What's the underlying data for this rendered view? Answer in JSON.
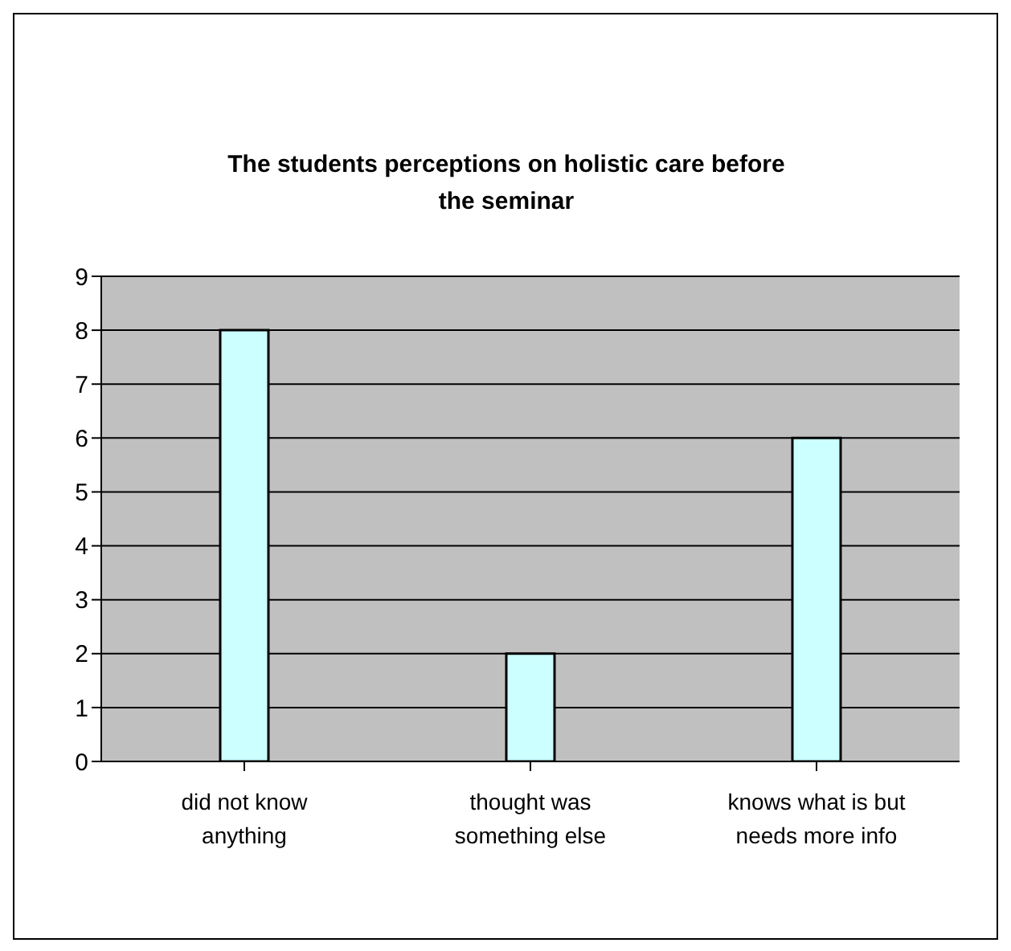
{
  "chart_data": {
    "type": "bar",
    "title": "The students perceptions on holistic care before the seminar",
    "categories": [
      "did not know anything",
      "thought was something else",
      "knows what is but needs more info"
    ],
    "values": [
      8,
      2,
      6
    ],
    "color": "#ccffff",
    "ylim": [
      0,
      9
    ],
    "yticks": [
      0,
      1,
      2,
      3,
      4,
      5,
      6,
      7,
      8,
      9
    ],
    "grid": "y"
  }
}
